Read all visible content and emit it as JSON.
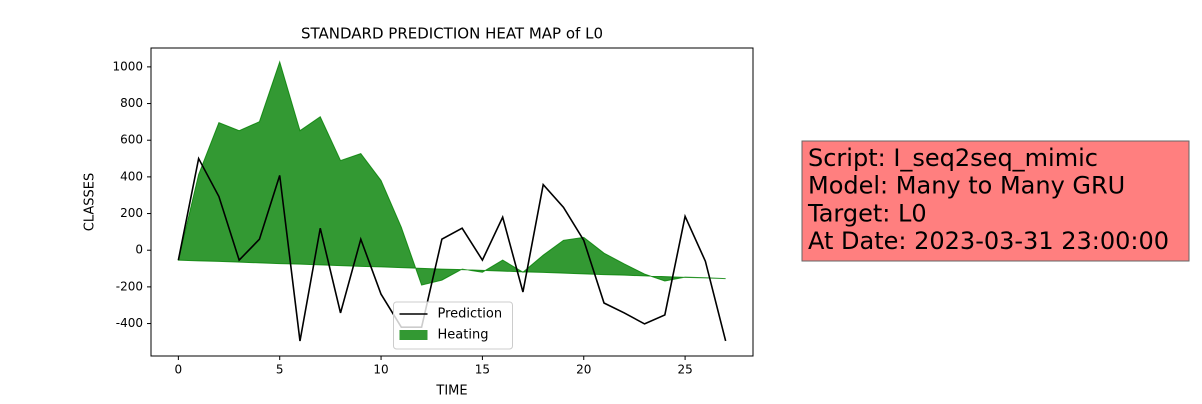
{
  "chart_data": {
    "type": "line_area",
    "title": "STANDARD PREDICTION HEAT MAP of L0",
    "xlabel": "TIME",
    "ylabel": "CLASSES",
    "x": [
      0,
      1,
      2,
      3,
      4,
      5,
      6,
      7,
      8,
      9,
      10,
      11,
      12,
      13,
      14,
      15,
      16,
      17,
      18,
      19,
      20,
      21,
      22,
      23,
      24,
      25,
      26,
      27
    ],
    "series": [
      {
        "name": "Prediction",
        "color": "#000000",
        "kind": "line",
        "values": [
          -54,
          500,
          293,
          -54,
          60,
          408,
          -495,
          120,
          -342,
          60,
          -240,
          -420,
          -420,
          60,
          120,
          -54,
          180,
          -228,
          358,
          234,
          54,
          -288,
          -342,
          -402,
          -353,
          185,
          -60,
          -495
        ]
      },
      {
        "name": "Heating",
        "color": "#008000",
        "alpha": 0.8,
        "kind": "area",
        "values": [
          -54,
          413,
          696,
          652,
          701,
          1027,
          652,
          728,
          489,
          527,
          380,
          125,
          -190,
          -163,
          -103,
          -120,
          -54,
          -120,
          -27,
          54,
          70,
          -16,
          -75,
          -130,
          -168,
          -147,
          -150,
          -155
        ],
        "baseline": [
          -54,
          -58,
          -61,
          -65,
          -69,
          -73,
          -76,
          -80,
          -84,
          -88,
          -91,
          -95,
          -99,
          -103,
          -106,
          -110,
          -114,
          -118,
          -121,
          -125,
          -129,
          -133,
          -136,
          -140,
          -144,
          -148,
          -151,
          -155
        ]
      }
    ],
    "xlim": [
      -1.35,
      28.35
    ],
    "xticks": [
      0,
      5,
      10,
      15,
      20,
      25
    ],
    "ylim": [
      -577,
      1103
    ],
    "yticks": [
      -400,
      -200,
      0,
      200,
      400,
      600,
      800,
      1000
    ],
    "legend": "lower center",
    "annotation": [
      "Script: I_seq2seq_mimic",
      "Model: Many to Many GRU",
      "Target: L0",
      "At Date: 2023-03-31 23:00:00"
    ],
    "annotation_color": "#ff7f7f"
  }
}
